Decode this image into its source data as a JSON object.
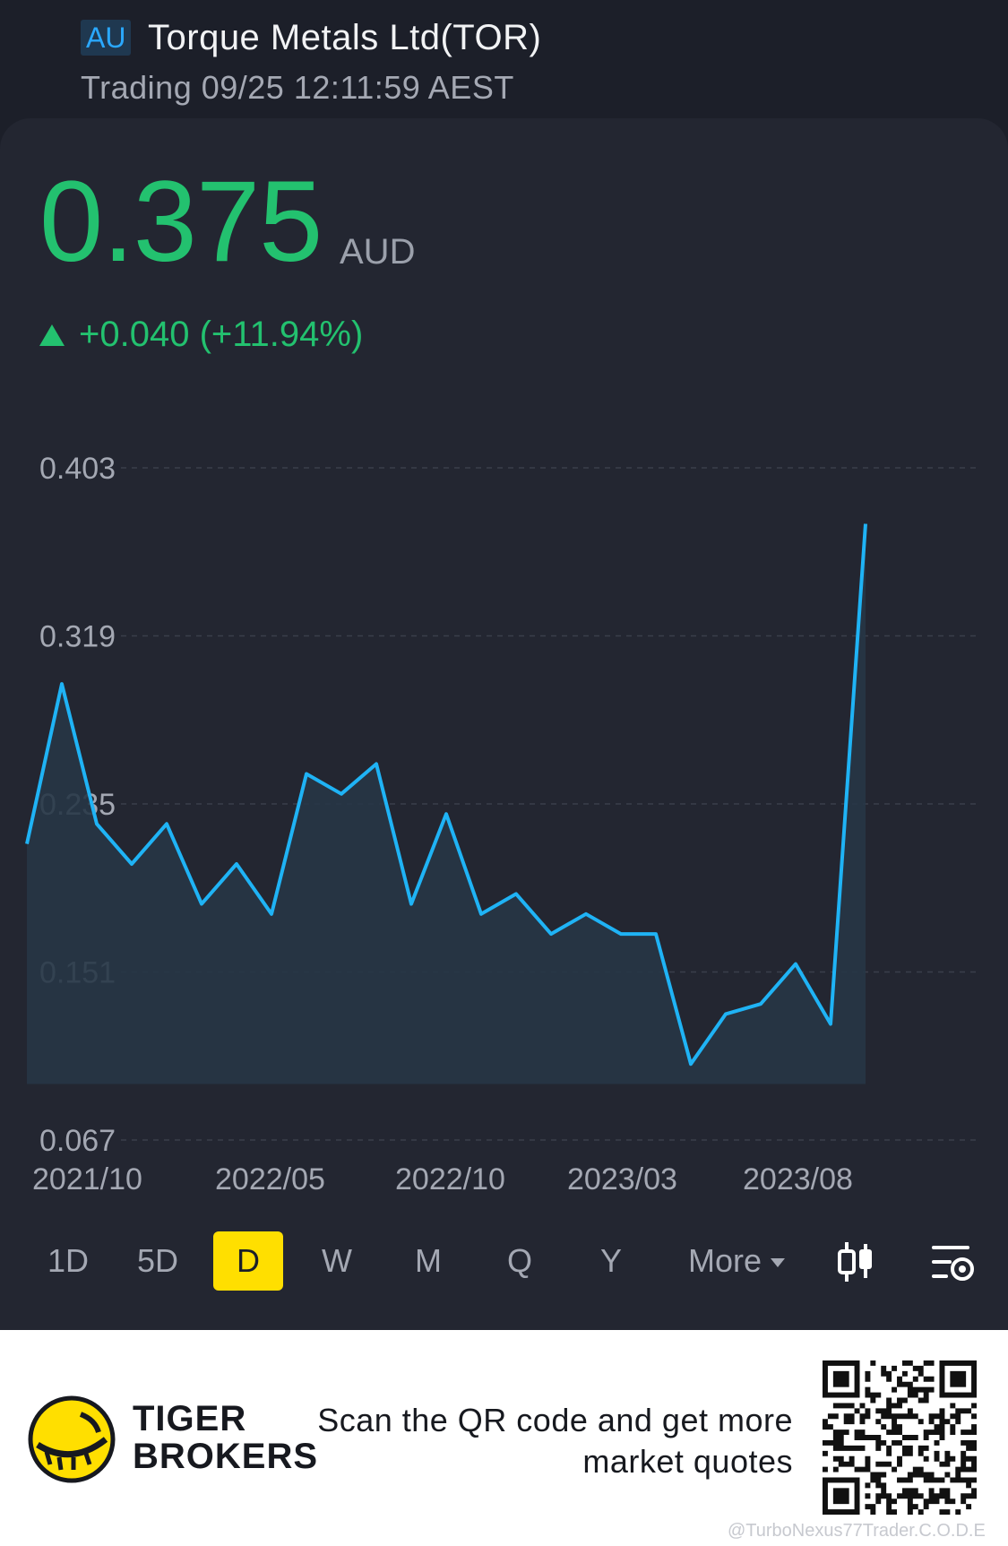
{
  "header": {
    "market_tag": "AU",
    "stock_name": "Torque Metals Ltd(TOR)",
    "status": "Trading 09/25 12:11:59 AEST"
  },
  "quote": {
    "price": "0.375",
    "currency": "AUD",
    "change": "+0.040 (+11.94%)",
    "direction": "up",
    "color_up": "#23c16f"
  },
  "chart_data": {
    "type": "line",
    "line_color": "#1fb3f5",
    "fill": "area",
    "grid": "dashed-horizontal",
    "ylim": [
      0.067,
      0.403
    ],
    "y_ticks": [
      "0.403",
      "0.319",
      "0.235",
      "0.151",
      "0.067"
    ],
    "x_ticks": [
      "2021/10",
      "2022/05",
      "2022/10",
      "2023/03",
      "2023/08"
    ],
    "x": [
      "2021-09",
      "2021-10",
      "2021-11",
      "2021-12",
      "2022-01",
      "2022-02",
      "2022-03",
      "2022-04",
      "2022-05",
      "2022-06",
      "2022-07",
      "2022-08",
      "2022-09",
      "2022-10",
      "2022-11",
      "2022-12",
      "2023-01",
      "2023-02",
      "2023-03",
      "2023-04",
      "2023-05",
      "2023-06",
      "2023-07",
      "2023-08",
      "2023-09"
    ],
    "values": [
      0.215,
      0.295,
      0.225,
      0.205,
      0.225,
      0.185,
      0.205,
      0.18,
      0.25,
      0.24,
      0.255,
      0.185,
      0.23,
      0.18,
      0.19,
      0.17,
      0.18,
      0.17,
      0.17,
      0.105,
      0.13,
      0.135,
      0.155,
      0.125,
      0.375
    ]
  },
  "periods": {
    "items": [
      "1D",
      "5D",
      "D",
      "W",
      "M",
      "Q",
      "Y",
      "More"
    ],
    "active": "D"
  },
  "footer": {
    "brand_line1": "TIGER",
    "brand_line2": "BROKERS",
    "promo_line1": "Scan the QR code and get more",
    "promo_line2": "market quotes",
    "watermark": "@TurboNexus77Trader.C.O.D.E",
    "brand_color": "#ffdf00"
  }
}
